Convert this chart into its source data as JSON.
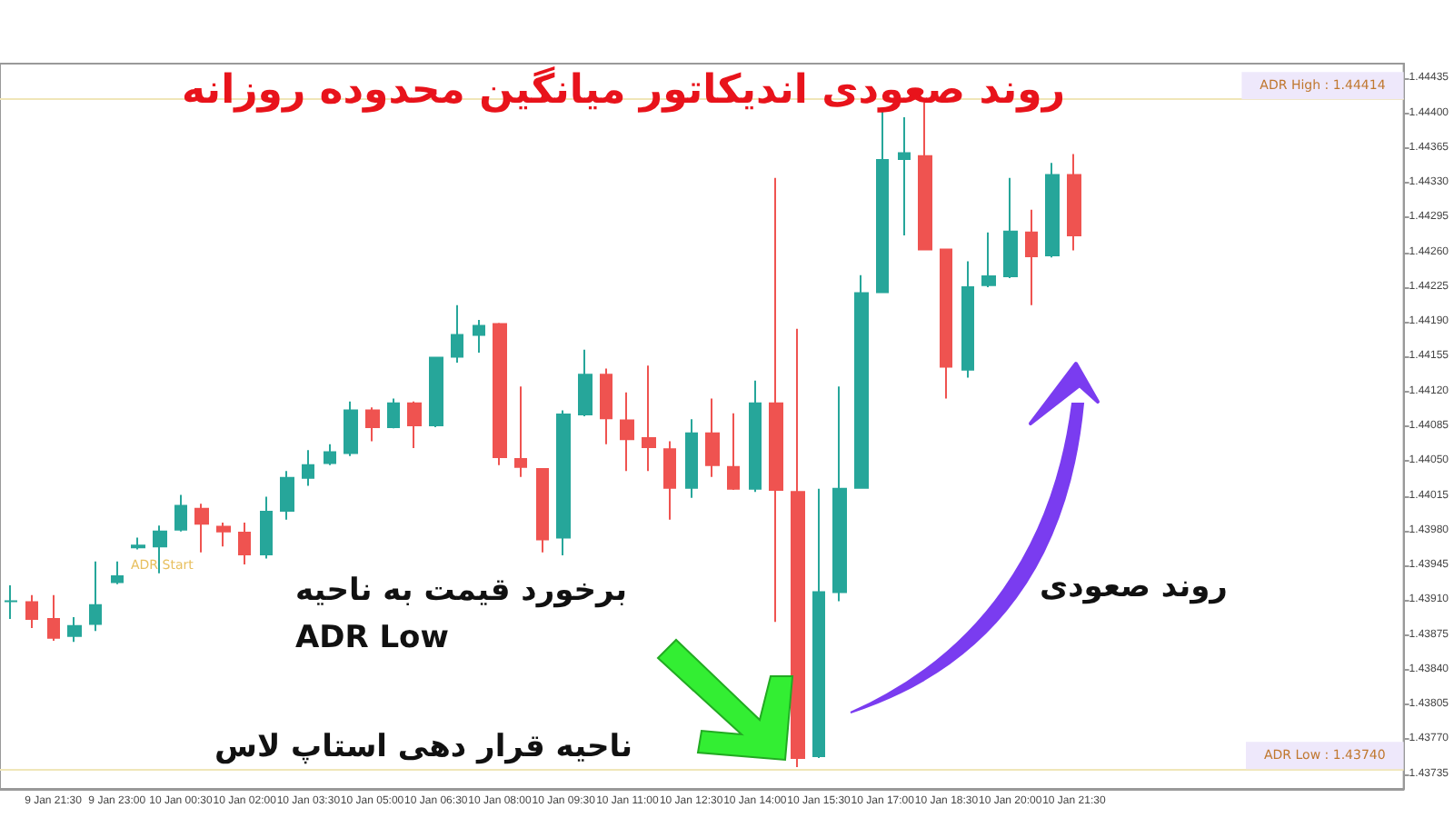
{
  "chart_data": {
    "type": "candlestick",
    "title": "روند صعودی اندیکاتور میانگین محدوده روزانه",
    "categories": [
      null,
      null,
      "9 Jan 21:30",
      null,
      null,
      "9 Jan 23:00",
      null,
      null,
      "10 Jan 00:30",
      null,
      null,
      "10 Jan 02:00",
      null,
      null,
      "10 Jan 03:30",
      null,
      null,
      "10 Jan 05:00",
      null,
      null,
      "10 Jan 06:30",
      null,
      null,
      "10 Jan 08:00",
      null,
      null,
      "10 Jan 09:30",
      null,
      null,
      "10 Jan 11:00",
      null,
      null,
      "10 Jan 12:30",
      null,
      null,
      "10 Jan 14:00",
      null,
      null,
      "10 Jan 15:30",
      null,
      null,
      "10 Jan 17:00",
      null,
      null,
      "10 Jan 18:30",
      null,
      null,
      "10 Jan 20:00",
      null,
      null,
      "10 Jan 21:30",
      null,
      null,
      null,
      null,
      null,
      null,
      null,
      null,
      null,
      null,
      null,
      null,
      null,
      null,
      null
    ],
    "ohlc": [
      [
        1.43909,
        1.43925,
        1.43891,
        1.43909
      ],
      [
        1.43908,
        1.43915,
        1.43882,
        1.43891
      ],
      [
        1.43891,
        1.43915,
        1.43869,
        1.43872
      ],
      [
        1.43874,
        1.43893,
        1.43868,
        1.43884
      ],
      [
        1.43886,
        1.43949,
        1.43879,
        1.43905
      ],
      [
        1.43928,
        1.43949,
        1.43926,
        1.43934
      ],
      [
        1.43963,
        1.43973,
        1.43961,
        1.43965
      ],
      [
        1.43964,
        1.43985,
        1.43937,
        1.43979
      ],
      [
        1.43981,
        1.44016,
        1.43979,
        1.44005
      ],
      [
        1.44002,
        1.44007,
        1.43958,
        1.43987
      ],
      [
        1.43984,
        1.43988,
        1.43964,
        1.43979
      ],
      [
        1.43978,
        1.43988,
        1.43946,
        1.43956
      ],
      [
        1.43956,
        1.44014,
        1.43952,
        1.43999
      ],
      [
        1.44,
        1.4404,
        1.43991,
        1.44033
      ],
      [
        1.44033,
        1.44061,
        1.44025,
        1.44046
      ],
      [
        1.44048,
        1.44067,
        1.44046,
        1.44059
      ],
      [
        1.44058,
        1.4411,
        1.44055,
        1.44101
      ],
      [
        1.44101,
        1.44104,
        1.4407,
        1.44084
      ],
      [
        1.44084,
        1.44113,
        1.44083,
        1.44108
      ],
      [
        1.44108,
        1.4411,
        1.44063,
        1.44086
      ],
      [
        1.44086,
        1.44155,
        1.44084,
        1.44154
      ],
      [
        1.44155,
        1.44207,
        1.44149,
        1.44177
      ],
      [
        1.44177,
        1.44192,
        1.44159,
        1.44186
      ],
      [
        1.44188,
        1.44189,
        1.44046,
        1.44054
      ],
      [
        1.44052,
        1.44125,
        1.44034,
        1.44044
      ],
      [
        1.44042,
        1.44042,
        1.43958,
        1.43971
      ],
      [
        1.43973,
        1.44101,
        1.43955,
        1.44097
      ],
      [
        1.44097,
        1.44162,
        1.44095,
        1.44137
      ],
      [
        1.44137,
        1.44143,
        1.44067,
        1.44093
      ],
      [
        1.44091,
        1.44119,
        1.4404,
        1.44072
      ],
      [
        1.44073,
        1.44146,
        1.4404,
        1.44064
      ],
      [
        1.44062,
        1.4407,
        1.43991,
        1.44023
      ],
      [
        1.44023,
        1.44092,
        1.44013,
        1.44078
      ],
      [
        1.44078,
        1.44113,
        1.44034,
        1.44046
      ],
      [
        1.44044,
        1.44098,
        1.44021,
        1.44022
      ],
      [
        1.44022,
        1.44131,
        1.44019,
        1.44108
      ],
      [
        1.44108,
        1.44335,
        1.43888,
        1.44021
      ],
      [
        1.44019,
        1.44183,
        1.43742,
        1.43751
      ],
      [
        1.43753,
        1.44022,
        1.43751,
        1.43918
      ],
      [
        1.43918,
        1.44125,
        1.43909,
        1.44022
      ],
      [
        1.44023,
        1.44237,
        1.44022,
        1.44219
      ],
      [
        1.4422,
        1.44402,
        1.44219,
        1.44353
      ],
      [
        1.44354,
        1.44396,
        1.44277,
        1.4436
      ],
      [
        1.44357,
        1.44411,
        1.44262,
        1.44263
      ],
      [
        1.44263,
        1.44263,
        1.44113,
        1.44145
      ],
      [
        1.44142,
        1.44251,
        1.44134,
        1.44225
      ],
      [
        1.44227,
        1.4428,
        1.44225,
        1.44236
      ],
      [
        1.44236,
        1.44335,
        1.44234,
        1.44281
      ],
      [
        1.4428,
        1.44303,
        1.44207,
        1.44256
      ],
      [
        1.44257,
        1.4435,
        1.44255,
        1.44338
      ],
      [
        1.44338,
        1.44359,
        1.44262,
        1.44277
      ],
      null,
      null,
      null,
      null,
      null,
      null,
      null,
      null,
      null,
      null,
      null,
      null,
      null,
      null,
      null
    ],
    "ylim": [
      1.4372,
      1.4445
    ],
    "yticks": [
      1.43735,
      {
        "value": 1.4377,
        "label": "1.43770"
      },
      1.43805,
      {
        "value": 1.4384,
        "label": "1.43840"
      },
      1.43875,
      {
        "value": 1.4391,
        "label": "1.43910"
      },
      1.43945,
      {
        "value": 1.4398,
        "label": "1.43980"
      },
      1.44015,
      {
        "value": 1.4405,
        "label": "1.44050"
      },
      1.44085,
      {
        "value": 1.4412,
        "label": "1.44120"
      },
      1.44155,
      {
        "value": 1.4419,
        "label": "1.44190"
      },
      1.44225,
      {
        "value": 1.4426,
        "label": "1.44260"
      },
      1.44295,
      {
        "value": 1.4433,
        "label": "1.44330"
      },
      1.44365,
      {
        "value": 1.444,
        "label": "1.44400"
      },
      1.44435
    ],
    "ref_lines": [
      {
        "axis": "y",
        "value": 1.44414,
        "label": "ADR High : 1.44414",
        "color": "#f0e6b8"
      },
      {
        "axis": "y",
        "value": 1.4374,
        "label": "ADR Low : 1.43740",
        "color": "#f0e6b8"
      }
    ],
    "annotations": [
      "ADR Start",
      "برخورد قیمت به ناحیه\nADR Low",
      "ناحیه قرار دهی استاپ لاس",
      "روند صعودی"
    ]
  }
}
